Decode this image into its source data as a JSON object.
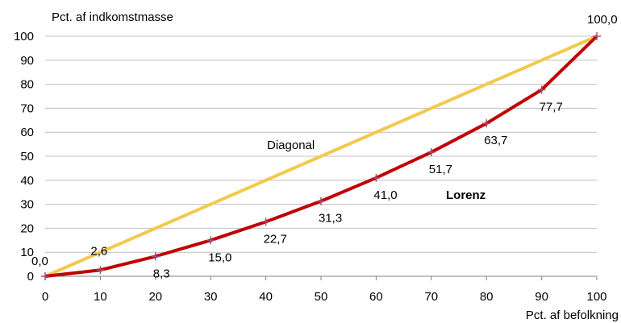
{
  "chart_data": {
    "type": "line",
    "xlabel": "Pct. af befolkning",
    "ylabel": "Pct. af indkomstmasse",
    "xlim": [
      0,
      100
    ],
    "ylim": [
      0,
      100
    ],
    "x_ticks": [
      "0",
      "10",
      "20",
      "30",
      "40",
      "50",
      "60",
      "70",
      "80",
      "90",
      "100"
    ],
    "y_ticks": [
      "0",
      "10",
      "20",
      "30",
      "40",
      "50",
      "60",
      "70",
      "80",
      "90",
      "100"
    ],
    "grid": true,
    "x": [
      0,
      10,
      20,
      30,
      40,
      50,
      60,
      70,
      80,
      90,
      100
    ],
    "series": [
      {
        "name": "Diagonal",
        "color": "#f2c94c",
        "values": [
          0,
          10,
          20,
          30,
          40,
          50,
          60,
          70,
          80,
          90,
          100
        ]
      },
      {
        "name": "Lorenz",
        "color": "#c00000",
        "marker_color": "#a05070",
        "values": [
          0,
          2.6,
          8.3,
          15.0,
          22.7,
          31.3,
          41.0,
          51.7,
          63.7,
          77.7,
          100.0
        ],
        "data_labels": [
          "0,0",
          "2,6",
          "8,3",
          "15,0",
          "22,7",
          "31,3",
          "41,0",
          "51,7",
          "63,7",
          "77,7",
          "100,0"
        ]
      }
    ]
  }
}
